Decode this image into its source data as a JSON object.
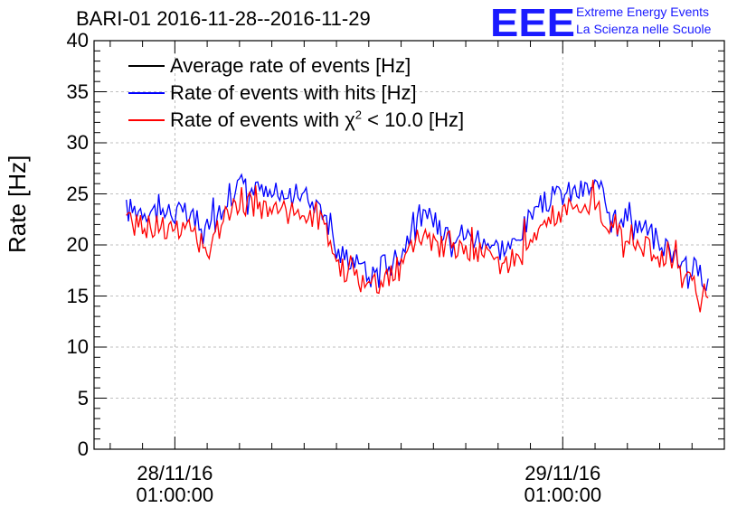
{
  "header": {
    "title": "BARI-01 2016-11-28--2016-11-29",
    "logo_letters": "EEE",
    "logo_line1": "Extreme Energy Events",
    "logo_line2": "La Scienza nelle Scuole",
    "logo_color": "#1a1aff"
  },
  "chart_data": {
    "type": "line",
    "title": "BARI-01 2016-11-28--2016-11-29",
    "ylabel": "Rate [Hz]",
    "xlabel": "",
    "ylim": [
      0,
      40
    ],
    "xlim": [
      "2016-11-27 20:00",
      "2016-11-29 11:00"
    ],
    "yticks": [
      "0",
      "5",
      "10",
      "15",
      "20",
      "25",
      "30",
      "35",
      "40"
    ],
    "xticks": [
      {
        "date": "28/11/16",
        "time": "01:00:00",
        "at": "2016-11-28 01:00"
      },
      {
        "date": "29/11/16",
        "time": "01:00:00",
        "at": "2016-11-29 01:00"
      }
    ],
    "grid": true,
    "legend_position": "top-left",
    "x_hours": [
      0,
      1,
      2,
      3,
      4,
      5,
      6,
      7,
      8,
      9,
      10,
      11,
      12,
      13,
      14,
      15,
      16,
      17,
      18,
      19,
      20,
      21,
      22,
      23,
      24,
      25,
      26,
      27,
      28,
      29,
      30,
      31,
      32,
      33,
      34,
      35,
      36
    ],
    "series": [
      {
        "name": "Average rate of events [Hz]",
        "color": "#000000",
        "values": [
          23.2,
          23.4,
          23.1,
          23.0,
          22.5,
          20.5,
          24.0,
          25.8,
          25.0,
          24.5,
          24.6,
          24.5,
          24.3,
          19.0,
          18.5,
          16.6,
          18.0,
          19.0,
          22.8,
          22.0,
          21.5,
          20.7,
          20.6,
          19.5,
          19.8,
          22.5,
          24.0,
          24.8,
          25.0,
          25.5,
          23.5,
          22.5,
          21.5,
          20.0,
          19.0,
          17.5,
          16.5
        ]
      },
      {
        "name": "Rate of events with hits [Hz]",
        "color": "#0000ff",
        "values": [
          23.4,
          23.6,
          23.3,
          23.2,
          22.7,
          20.7,
          24.2,
          26.0,
          25.2,
          24.7,
          24.8,
          24.7,
          24.5,
          19.2,
          18.7,
          16.8,
          18.2,
          19.2,
          23.0,
          22.2,
          21.7,
          20.9,
          20.8,
          19.7,
          20.0,
          22.7,
          24.2,
          25.0,
          25.2,
          25.7,
          23.7,
          22.7,
          21.7,
          20.2,
          19.2,
          17.7,
          16.7
        ]
      },
      {
        "name": "Rate of events with χ² < 10.0 [Hz]",
        "color": "#ff0000",
        "values": [
          22.0,
          22.1,
          21.8,
          21.7,
          21.2,
          19.2,
          22.7,
          24.5,
          23.6,
          23.2,
          23.2,
          23.1,
          22.9,
          17.8,
          17.2,
          15.5,
          16.8,
          17.8,
          21.4,
          20.6,
          20.1,
          19.4,
          19.2,
          18.2,
          18.4,
          21.1,
          22.6,
          23.4,
          23.5,
          23.9,
          22.0,
          21.0,
          20.1,
          18.6,
          17.6,
          16.1,
          14.8
        ]
      }
    ]
  }
}
